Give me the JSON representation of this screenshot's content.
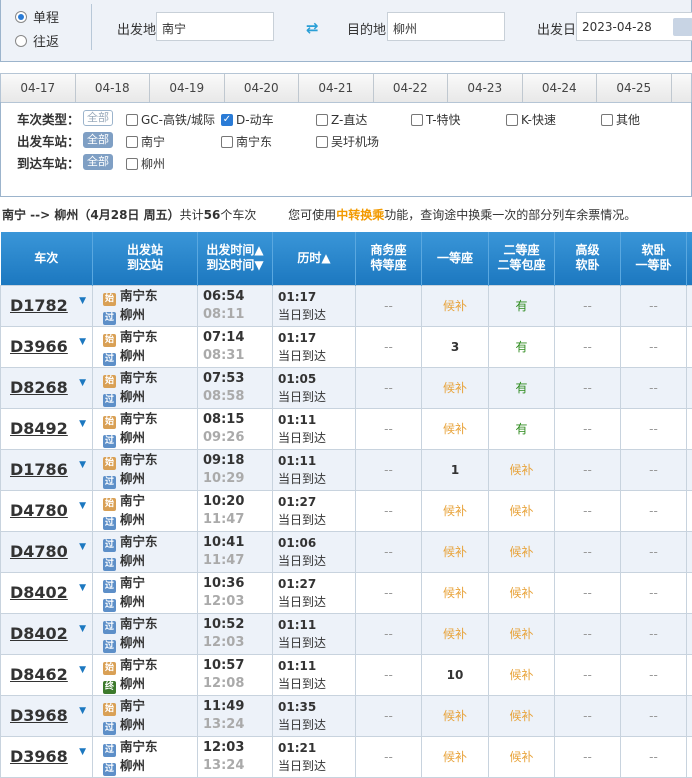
{
  "search": {
    "trip_types": [
      {
        "label": "单程",
        "selected": true
      },
      {
        "label": "往返",
        "selected": false
      }
    ],
    "from_label": "出发地",
    "from_value": "南宁",
    "to_label": "目的地",
    "to_value": "柳州",
    "date_label": "出发日",
    "date_value": "2023-04-28"
  },
  "date_tabs": [
    "04-17",
    "04-18",
    "04-19",
    "04-20",
    "04-21",
    "04-22",
    "04-23",
    "04-24",
    "04-25"
  ],
  "filters": {
    "type_label": "车次类型：",
    "all": "全部",
    "types": [
      {
        "label": "GC-高铁/城际",
        "checked": false
      },
      {
        "label": "D-动车",
        "checked": true
      },
      {
        "label": "Z-直达",
        "checked": false
      },
      {
        "label": "T-特快",
        "checked": false
      },
      {
        "label": "K-快速",
        "checked": false
      },
      {
        "label": "其他",
        "checked": false
      }
    ],
    "dep_label": "出发车站：",
    "dep_stations": [
      "南宁",
      "南宁东",
      "吴圩机场"
    ],
    "arr_label": "到达车站：",
    "arr_stations": [
      "柳州"
    ]
  },
  "summary": {
    "route": "南宁 --> 柳州（4月28日 周五）",
    "count_prefix": "共计",
    "count": "56",
    "count_suffix": "个车次",
    "hint_prefix": "您可使用",
    "hint_link": "中转换乘",
    "hint_suffix": "功能，查询途中换乘一次的部分列车余票情况。"
  },
  "table": {
    "headers": {
      "train": "车次",
      "station1": "出发站",
      "station2": "到达站",
      "time1": "出发时间▲",
      "time2": "到达时间▼",
      "duration": "历时▲",
      "biz1": "商务座",
      "biz2": "特等座",
      "first": "一等座",
      "second1": "二等座",
      "second2": "二等包座",
      "hsw1": "高级",
      "hsw2": "软卧",
      "sw1": "软卧",
      "sw2": "一等卧"
    },
    "rows": [
      {
        "train": "D1782",
        "from_badge": "始",
        "from": "南宁东",
        "to_badge": "过",
        "to": "柳州",
        "dep": "06:54",
        "arr": "08:11",
        "dur": "01:17",
        "day": "当日到达",
        "biz": "--",
        "first": "候补",
        "second": "有",
        "hsw": "--",
        "sw": "--"
      },
      {
        "train": "D3966",
        "from_badge": "始",
        "from": "南宁东",
        "to_badge": "过",
        "to": "柳州",
        "dep": "07:14",
        "arr": "08:31",
        "dur": "01:17",
        "day": "当日到达",
        "biz": "--",
        "first": "3",
        "second": "有",
        "hsw": "--",
        "sw": "--"
      },
      {
        "train": "D8268",
        "from_badge": "始",
        "from": "南宁东",
        "to_badge": "过",
        "to": "柳州",
        "dep": "07:53",
        "arr": "08:58",
        "dur": "01:05",
        "day": "当日到达",
        "biz": "--",
        "first": "候补",
        "second": "有",
        "hsw": "--",
        "sw": "--"
      },
      {
        "train": "D8492",
        "from_badge": "始",
        "from": "南宁东",
        "to_badge": "过",
        "to": "柳州",
        "dep": "08:15",
        "arr": "09:26",
        "dur": "01:11",
        "day": "当日到达",
        "biz": "--",
        "first": "候补",
        "second": "有",
        "hsw": "--",
        "sw": "--"
      },
      {
        "train": "D1786",
        "from_badge": "始",
        "from": "南宁东",
        "to_badge": "过",
        "to": "柳州",
        "dep": "09:18",
        "arr": "10:29",
        "dur": "01:11",
        "day": "当日到达",
        "biz": "--",
        "first": "1",
        "second": "候补",
        "hsw": "--",
        "sw": "--"
      },
      {
        "train": "D4780",
        "from_badge": "始",
        "from": "南宁",
        "to_badge": "过",
        "to": "柳州",
        "dep": "10:20",
        "arr": "11:47",
        "dur": "01:27",
        "day": "当日到达",
        "biz": "--",
        "first": "候补",
        "second": "候补",
        "hsw": "--",
        "sw": "--"
      },
      {
        "train": "D4780",
        "from_badge": "过",
        "from": "南宁东",
        "to_badge": "过",
        "to": "柳州",
        "dep": "10:41",
        "arr": "11:47",
        "dur": "01:06",
        "day": "当日到达",
        "biz": "--",
        "first": "候补",
        "second": "候补",
        "hsw": "--",
        "sw": "--"
      },
      {
        "train": "D8402",
        "from_badge": "过",
        "from": "南宁",
        "to_badge": "过",
        "to": "柳州",
        "dep": "10:36",
        "arr": "12:03",
        "dur": "01:27",
        "day": "当日到达",
        "biz": "--",
        "first": "候补",
        "second": "候补",
        "hsw": "--",
        "sw": "--"
      },
      {
        "train": "D8402",
        "from_badge": "过",
        "from": "南宁东",
        "to_badge": "过",
        "to": "柳州",
        "dep": "10:52",
        "arr": "12:03",
        "dur": "01:11",
        "day": "当日到达",
        "biz": "--",
        "first": "候补",
        "second": "候补",
        "hsw": "--",
        "sw": "--"
      },
      {
        "train": "D8462",
        "from_badge": "始",
        "from": "南宁东",
        "to_badge": "终",
        "to": "柳州",
        "dep": "10:57",
        "arr": "12:08",
        "dur": "01:11",
        "day": "当日到达",
        "biz": "--",
        "first": "10",
        "second": "候补",
        "hsw": "--",
        "sw": "--"
      },
      {
        "train": "D3968",
        "from_badge": "始",
        "from": "南宁",
        "to_badge": "过",
        "to": "柳州",
        "dep": "11:49",
        "arr": "13:24",
        "dur": "01:35",
        "day": "当日到达",
        "biz": "--",
        "first": "候补",
        "second": "候补",
        "hsw": "--",
        "sw": "--"
      },
      {
        "train": "D3968",
        "from_badge": "过",
        "from": "南宁东",
        "to_badge": "过",
        "to": "柳州",
        "dep": "12:03",
        "arr": "13:24",
        "dur": "01:21",
        "day": "当日到达",
        "biz": "--",
        "first": "候补",
        "second": "候补",
        "hsw": "--",
        "sw": "--"
      }
    ]
  },
  "colors": {
    "header": "#1c78c0",
    "available": "#2c8a1c",
    "waitlist": "#e8a33a",
    "link": "#f29a00"
  }
}
